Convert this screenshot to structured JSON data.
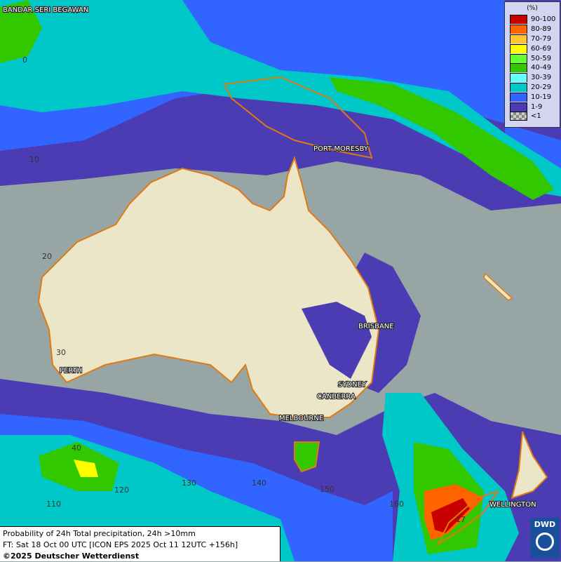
{
  "legend": {
    "unit": "(%)",
    "items": [
      {
        "label": "90-100",
        "color": "#c80000"
      },
      {
        "label": "80-89",
        "color": "#ff6400"
      },
      {
        "label": "70-79",
        "color": "#ffc832"
      },
      {
        "label": "60-69",
        "color": "#ffff00"
      },
      {
        "label": "50-59",
        "color": "#64ff32"
      },
      {
        "label": "40-49",
        "color": "#32c800"
      },
      {
        "label": "30-39",
        "color": "#64ffff"
      },
      {
        "label": "20-29",
        "color": "#00c8c8"
      },
      {
        "label": "10-19",
        "color": "#3264ff"
      },
      {
        "label": "1-9",
        "color": "#4b3cb4"
      },
      {
        "label": "<1",
        "color": "#a0a0a0"
      }
    ]
  },
  "cities": {
    "bandar": "BANDAR SERI BEGAWAN",
    "port_moresby": "PORT MORESBY",
    "brisbane": "BRISBANE",
    "sydney": "SYDNEY",
    "canberra": "CANBERRA",
    "melbourne": "MELBOURNE",
    "perth": "PERTH",
    "wellington": "WELLINGTON"
  },
  "grid": {
    "lat": [
      "0",
      "10",
      "20",
      "30",
      "40"
    ],
    "lon": [
      "110",
      "120",
      "130",
      "140",
      "150",
      "160",
      "17"
    ]
  },
  "caption": {
    "line1": "Probability of 24h Total precipitation, 24h >10mm",
    "line2": "FT: Sat 18 Oct 00 UTC [ICON EPS 2025 Oct 11 12UTC +156h]",
    "line3": "©2025 Deutscher Wetterdienst"
  },
  "logo": "DWD"
}
